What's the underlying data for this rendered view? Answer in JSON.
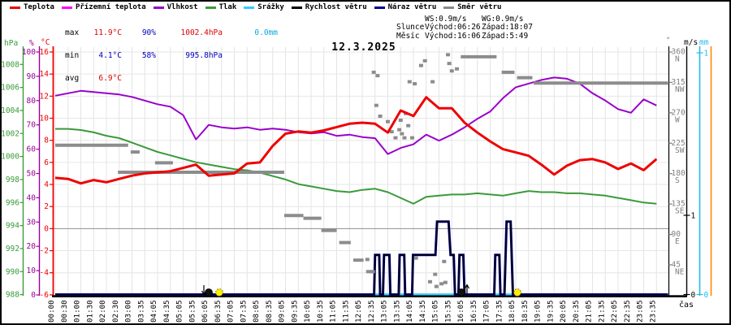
{
  "legend": {
    "items": [
      {
        "label": "Teplota",
        "color": "#ee0000"
      },
      {
        "label": "Přízemní teplota",
        "color": "#ff00ff"
      },
      {
        "label": "Vlhkost",
        "color": "#9900cc"
      },
      {
        "label": "Tlak",
        "color": "#3a9a3a"
      },
      {
        "label": "Srážky",
        "color": "#33ccff"
      },
      {
        "label": "Rychlost větru",
        "color": "#000000"
      },
      {
        "label": "Náraz větru",
        "color": "#000099"
      },
      {
        "label": "Směr větru",
        "color": "#888888"
      }
    ]
  },
  "stats": {
    "max": {
      "label": "max",
      "temp": "11.9°C",
      "hum": "90%",
      "pres": "1002.4hPa",
      "precip": "0.0mm"
    },
    "min": {
      "label": "min",
      "temp": "4.1°C",
      "hum": "58%",
      "pres": "995.8hPa"
    },
    "avg": {
      "label": "avg",
      "temp": "6.9°C"
    }
  },
  "header": {
    "date": "12.3.2025",
    "ws": "WS:0.9m/s",
    "wg": "WG:0.9m/s",
    "sun_label": "Slunce",
    "sun_rise": "Východ:06:26",
    "sun_set": "Západ:18:07",
    "moon_label": "Měsíc",
    "moon_rise": "Východ:16:06",
    "moon_set": "Západ:5:49"
  },
  "axes": {
    "left": {
      "pressure_unit": "hPa",
      "pressure_ticks": [
        1008,
        1006,
        1004,
        1002,
        1000,
        998,
        996,
        994,
        992,
        990,
        988
      ],
      "humidity_unit": "%",
      "humidity_ticks": [
        100,
        90,
        80,
        70,
        60,
        50,
        40,
        30,
        20,
        10,
        0
      ],
      "temp_unit": "°C",
      "temp_ticks": [
        16,
        14,
        12,
        10,
        8,
        6,
        4,
        2,
        0,
        -2,
        -4,
        -6
      ]
    },
    "right": {
      "direction_unit": "°",
      "direction_ticks": [
        {
          "deg": 360,
          "label": "360",
          "compass": "N"
        },
        {
          "deg": 315,
          "label": "315",
          "compass": "NW"
        },
        {
          "deg": 270,
          "label": "270",
          "compass": "W"
        },
        {
          "deg": 225,
          "label": "225",
          "compass": "SW"
        },
        {
          "deg": 180,
          "label": "180",
          "compass": "S"
        },
        {
          "deg": 135,
          "label": "135",
          "compass": "SE"
        },
        {
          "deg": 90,
          "label": "90",
          "compass": "E"
        },
        {
          "deg": 45,
          "label": "45",
          "compass": "NE"
        }
      ],
      "wind_unit": "m/s",
      "wind_ticks": [
        1,
        0
      ],
      "precip_unit": "mm",
      "precip_ticks": [
        1,
        0
      ]
    },
    "time_label": "čas"
  },
  "chart_data": {
    "type": "line",
    "title": "12.3.2025",
    "x_labels": [
      "00:00",
      "00:30",
      "01:00",
      "01:30",
      "02:00",
      "02:30",
      "03:00",
      "03:35",
      "04:05",
      "04:35",
      "05:05",
      "05:35",
      "06:05",
      "06:35",
      "07:05",
      "07:35",
      "08:05",
      "08:35",
      "09:05",
      "09:35",
      "10:05",
      "10:35",
      "11:05",
      "11:35",
      "12:05",
      "12:35",
      "13:05",
      "13:35",
      "14:05",
      "14:35",
      "15:05",
      "15:35",
      "16:05",
      "16:35",
      "17:05",
      "17:35",
      "18:05",
      "18:35",
      "19:05",
      "19:35",
      "20:05",
      "20:35",
      "21:05",
      "21:35",
      "22:05",
      "22:35",
      "23:05",
      "23:35"
    ],
    "axis_ranges": {
      "temp_c": [
        -6,
        16
      ],
      "humidity_pct": [
        0,
        100
      ],
      "pressure_hpa": [
        988,
        1008
      ],
      "direction_deg": [
        0,
        360
      ],
      "wind_ms": [
        0,
        3.1
      ],
      "precip_mm": [
        0,
        1
      ]
    },
    "grid": true,
    "series": [
      {
        "name": "Teplota",
        "unit": "°C",
        "color": "#ee0000",
        "axis": "temp",
        "values": [
          4.6,
          4.5,
          4.1,
          4.4,
          4.2,
          4.5,
          4.8,
          5.0,
          5.1,
          5.2,
          5.5,
          5.8,
          4.8,
          4.9,
          5.0,
          5.9,
          6.0,
          7.5,
          8.6,
          8.8,
          8.7,
          8.9,
          9.2,
          9.5,
          9.6,
          9.5,
          8.7,
          10.7,
          10.2,
          11.9,
          10.9,
          10.9,
          9.6,
          8.7,
          7.9,
          7.2,
          6.9,
          6.6,
          5.8,
          4.9,
          5.7,
          6.2,
          6.3,
          6.0,
          5.4,
          5.9,
          5.3,
          6.3
        ]
      },
      {
        "name": "Vlhkost",
        "unit": "%",
        "color": "#9900cc",
        "axis": "humidity",
        "values": [
          82,
          83,
          84,
          83.5,
          83,
          82.5,
          81.5,
          80,
          78.5,
          77.5,
          74,
          64,
          70,
          69,
          68.5,
          69,
          68,
          68.5,
          68,
          67,
          66.5,
          67,
          65.5,
          66,
          65,
          64.5,
          58,
          60.5,
          62,
          66,
          63.5,
          66,
          69,
          72.5,
          75.5,
          81,
          85.5,
          87,
          88.5,
          89.5,
          89,
          87,
          83,
          80,
          76.5,
          75,
          80.5,
          78
        ]
      },
      {
        "name": "Tlak",
        "unit": "hPa",
        "color": "#3a9a3a",
        "axis": "pressure",
        "values": [
          1002.4,
          1002.4,
          1002.3,
          1002.1,
          1001.8,
          1001.6,
          1001.2,
          1000.8,
          1000.4,
          1000.1,
          999.8,
          999.5,
          999.3,
          999.1,
          998.9,
          998.8,
          998.6,
          998.3,
          998.0,
          997.6,
          997.4,
          997.2,
          997.0,
          996.9,
          997.1,
          997.2,
          996.9,
          996.4,
          995.9,
          996.5,
          996.6,
          996.7,
          996.7,
          996.8,
          996.7,
          996.6,
          996.8,
          997.0,
          996.9,
          996.9,
          996.8,
          996.8,
          996.7,
          996.6,
          996.4,
          996.2,
          996.0,
          995.9
        ]
      }
    ],
    "wind_speed": {
      "name": "Rychlost větru",
      "unit": "m/s",
      "color": "#000000",
      "max": 0.9,
      "points": [
        [
          0,
          0
        ],
        [
          24.93,
          0
        ],
        [
          25.0,
          0.5
        ],
        [
          25.33,
          0.5
        ],
        [
          25.4,
          0
        ],
        [
          25.62,
          0
        ],
        [
          25.7,
          0.5
        ],
        [
          26.12,
          0.5
        ],
        [
          26.2,
          0
        ],
        [
          26.85,
          0
        ],
        [
          26.92,
          0.5
        ],
        [
          27.28,
          0.5
        ],
        [
          27.35,
          0
        ],
        [
          27.9,
          0
        ],
        [
          27.97,
          0.5
        ],
        [
          29.72,
          0.5
        ],
        [
          29.85,
          0.92
        ],
        [
          30.75,
          0.92
        ],
        [
          30.9,
          0.5
        ],
        [
          31.15,
          0.5
        ],
        [
          31.25,
          0
        ],
        [
          31.52,
          0
        ],
        [
          31.6,
          0.5
        ],
        [
          31.9,
          0.5
        ],
        [
          32.0,
          0
        ],
        [
          34.32,
          0
        ],
        [
          34.4,
          0.5
        ],
        [
          34.72,
          0.5
        ],
        [
          34.8,
          0
        ],
        [
          35.12,
          0
        ],
        [
          35.28,
          0.92
        ],
        [
          35.6,
          0.92
        ],
        [
          35.78,
          0
        ],
        [
          47.9,
          0
        ]
      ]
    },
    "precipitation": {
      "name": "Srážky",
      "unit": "mm",
      "color": "#33ccff",
      "total": 0.0,
      "zero_segments": [
        [
          24.4,
          31.25
        ],
        [
          34.0,
          35.9
        ]
      ]
    },
    "wind_direction": {
      "name": "Směr větru",
      "unit": "°",
      "color": "#8c8c8c",
      "segments": [
        [
          0.0,
          5.7,
          222
        ],
        [
          5.9,
          6.6,
          212
        ],
        [
          7.8,
          9.2,
          196
        ],
        [
          4.9,
          17.9,
          182
        ],
        [
          17.9,
          19.4,
          118
        ],
        [
          19.4,
          20.8,
          114
        ],
        [
          20.8,
          22.0,
          96
        ],
        [
          22.2,
          23.1,
          78
        ],
        [
          23.3,
          24.1,
          52
        ],
        [
          24.3,
          25.0,
          35
        ],
        [
          31.7,
          34.5,
          353
        ],
        [
          34.9,
          35.9,
          330
        ],
        [
          36.1,
          37.3,
          322
        ],
        [
          37.4,
          47.9,
          314
        ]
      ],
      "dots": [
        [
          24.4,
          53
        ],
        [
          24.7,
          35
        ],
        [
          24.9,
          330
        ],
        [
          25.1,
          281
        ],
        [
          25.2,
          325
        ],
        [
          25.4,
          265
        ],
        [
          26.0,
          257
        ],
        [
          26.3,
          242
        ],
        [
          26.6,
          233
        ],
        [
          26.9,
          245
        ],
        [
          27.0,
          259
        ],
        [
          27.1,
          239
        ],
        [
          27.3,
          233
        ],
        [
          27.4,
          269
        ],
        [
          27.6,
          251
        ],
        [
          27.7,
          316
        ],
        [
          27.9,
          233
        ],
        [
          28.1,
          313
        ],
        [
          28.2,
          55
        ],
        [
          28.6,
          340
        ],
        [
          28.9,
          347
        ],
        [
          29.3,
          20
        ],
        [
          29.5,
          316
        ],
        [
          29.7,
          31
        ],
        [
          29.8,
          13
        ],
        [
          30.2,
          17
        ],
        [
          30.4,
          50
        ],
        [
          30.5,
          19
        ],
        [
          30.7,
          356
        ],
        [
          30.8,
          343
        ],
        [
          31.0,
          332
        ],
        [
          31.4,
          335
        ]
      ]
    },
    "astro_markers": [
      {
        "name": "moonset-marker",
        "event": "Měsíc Západ 5:49",
        "dot": "black",
        "x": 257,
        "arrow": "down",
        "arrow_x": 251
      },
      {
        "name": "sunrise-marker",
        "event": "Slunce Východ 06:26",
        "dot": "yellow",
        "x": 270
      },
      {
        "name": "moonrise-marker",
        "event": "Měsíc Východ 16:06",
        "dot": "black",
        "x": 568,
        "arrow": "up",
        "arrow_x": 575
      },
      {
        "name": "sunset-marker",
        "event": "Slunce Západ 18:07",
        "dot": "yellow",
        "x": 637
      }
    ]
  }
}
